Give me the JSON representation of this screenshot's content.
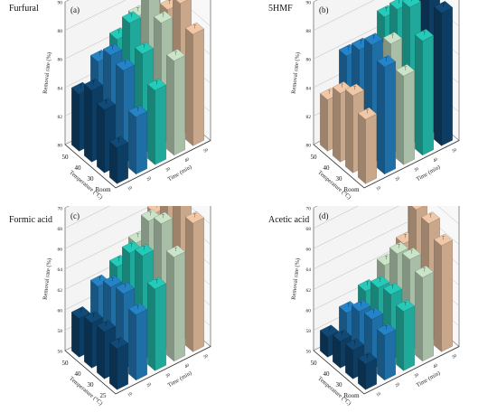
{
  "chart_data": [
    {
      "type": "bar",
      "title": "Furfural",
      "panel_label": "(a)",
      "xlabel": "Temperature (°C)",
      "ylabel": "Removal rate (%)",
      "zlabel": "Time (min)",
      "x_categories": [
        "Room",
        "30",
        "40",
        "50"
      ],
      "y_ticks": [
        "80",
        "82",
        "84",
        "86",
        "88",
        "90"
      ],
      "z_categories": [
        "10",
        "20",
        "30",
        "40",
        "50"
      ],
      "ylim": [
        80,
        90
      ],
      "colors": [
        "#0e3d63",
        "#1f6ea6",
        "#20a89a",
        "#a8bea7",
        "#c9a78b"
      ],
      "values": [
        [
          82.5,
          84.0,
          85.2,
          86.6,
          87.8
        ],
        [
          84.4,
          86.5,
          87.0,
          88.5,
          89.2
        ],
        [
          85.0,
          86.8,
          88.4,
          89.6,
          88.0
        ],
        [
          84.0,
          85.6,
          86.5,
          87.4,
          87.0
        ]
      ]
    },
    {
      "type": "bar",
      "title": "5HMF",
      "panel_label": "(b)",
      "xlabel": "Temperature (°C)",
      "ylabel": "Removal rate (%)",
      "zlabel": "Time (min)",
      "x_categories": [
        "Room",
        "30",
        "40",
        "50"
      ],
      "y_ticks": [
        "80",
        "82",
        "84",
        "86",
        "88",
        "90"
      ],
      "z_categories": [
        "10",
        "20",
        "30",
        "40",
        "50"
      ],
      "ylim": [
        80,
        90
      ],
      "colors": [
        "#c9a78b",
        "#1f6ea6",
        "#a8bea7",
        "#20a89a",
        "#0e3d63"
      ],
      "values": [
        [
          84.5,
          87.5,
          86.2,
          88.0,
          89.3
        ],
        [
          85.4,
          88.3,
          87.7,
          89.6,
          90.0
        ],
        [
          84.8,
          87.2,
          86.3,
          88.7,
          89.4
        ],
        [
          83.6,
          86.0,
          85.2,
          87.4,
          86.4
        ]
      ]
    },
    {
      "type": "bar",
      "title": "Formic acid",
      "panel_label": "(c)",
      "xlabel": "Temperature (°C)",
      "ylabel": "Removal rate (%)",
      "zlabel": "Time (min)",
      "x_categories": [
        "25",
        "30",
        "40",
        "50"
      ],
      "y_ticks": [
        "56",
        "58",
        "60",
        "62",
        "64",
        "66",
        "68",
        "70"
      ],
      "z_categories": [
        "10",
        "20",
        "30",
        "40",
        "50"
      ],
      "ylim": [
        56,
        70
      ],
      "colors": [
        "#0e3d63",
        "#1f6ea6",
        "#20a89a",
        "#a8bea7",
        "#c9a78b"
      ],
      "values": [
        [
          60.0,
          62.4,
          64.0,
          66.2,
          68.6
        ],
        [
          60.6,
          63.4,
          66.2,
          68.4,
          70.0
        ],
        [
          60.4,
          63.0,
          65.4,
          67.6,
          69.0
        ],
        [
          59.8,
          62.0,
          63.0,
          64.4,
          66.4
        ]
      ]
    },
    {
      "type": "bar",
      "title": "Acetic acid",
      "panel_label": "(d)",
      "xlabel": "Temperature (°C)",
      "ylabel": "Removal rate (%)",
      "zlabel": "Time (min)",
      "x_categories": [
        "Room",
        "30",
        "40",
        "50"
      ],
      "y_ticks": [
        "56",
        "58",
        "60",
        "62",
        "64",
        "66",
        "68",
        "70"
      ],
      "z_categories": [
        "10",
        "20",
        "30",
        "40",
        "50"
      ],
      "ylim": [
        56,
        70
      ],
      "colors": [
        "#0e3d63",
        "#1f6ea6",
        "#20a89a",
        "#a8bea7",
        "#c9a78b"
      ],
      "values": [
        [
          58.5,
          60.4,
          61.8,
          64.2,
          66.4
        ],
        [
          58.8,
          60.9,
          62.4,
          64.9,
          67.5
        ],
        [
          58.6,
          60.6,
          62.0,
          64.4,
          67.8
        ],
        [
          58.0,
          59.4,
          60.6,
          62.2,
          63.4
        ]
      ]
    }
  ]
}
